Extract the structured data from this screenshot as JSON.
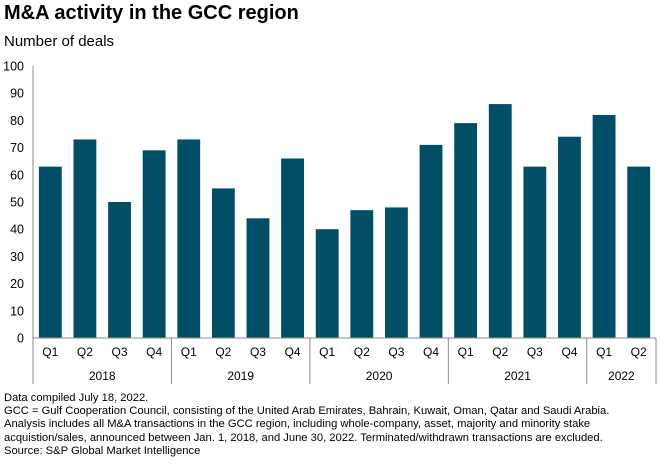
{
  "header": {
    "title": "M&A activity in the GCC region",
    "subtitle": "Number of deals"
  },
  "chart_data": {
    "type": "bar",
    "title": "M&A activity in the GCC region",
    "ylabel": "Number of deals",
    "xlabel": "",
    "ylim": [
      0,
      100
    ],
    "yticks": [
      "0",
      "10",
      "20",
      "30",
      "40",
      "50",
      "60",
      "70",
      "80",
      "90",
      "100"
    ],
    "grid": false,
    "legend": "none",
    "color": "#004f66",
    "groups": [
      {
        "year": "2018",
        "quarters": [
          "Q1",
          "Q2",
          "Q3",
          "Q4"
        ],
        "values": [
          63,
          73,
          50,
          69
        ]
      },
      {
        "year": "2019",
        "quarters": [
          "Q1",
          "Q2",
          "Q3",
          "Q4"
        ],
        "values": [
          73,
          55,
          44,
          66
        ]
      },
      {
        "year": "2020",
        "quarters": [
          "Q1",
          "Q2",
          "Q3",
          "Q4"
        ],
        "values": [
          40,
          47,
          48,
          71
        ]
      },
      {
        "year": "2021",
        "quarters": [
          "Q1",
          "Q2",
          "Q3",
          "Q4"
        ],
        "values": [
          79,
          86,
          63,
          74
        ]
      },
      {
        "year": "2022",
        "quarters": [
          "Q1",
          "Q2"
        ],
        "values": [
          82,
          63
        ]
      }
    ]
  },
  "footer": {
    "line1": "Data compiled July 18, 2022.",
    "line2": "GCC = Gulf Cooperation Council, consisting of the United Arab Emirates, Bahrain, Kuwait, Oman, Qatar and Saudi Arabia.",
    "line3": "Analysis includes all M&A transactions in the GCC region, including whole-company, asset, majority and minority stake",
    "line4": "acquistion/sales, announced between Jan. 1, 2018, and June 30, 2022. Terminated/withdrawn transactions are excluded.",
    "line5": "Source: S&P Global Market Intelligence"
  }
}
